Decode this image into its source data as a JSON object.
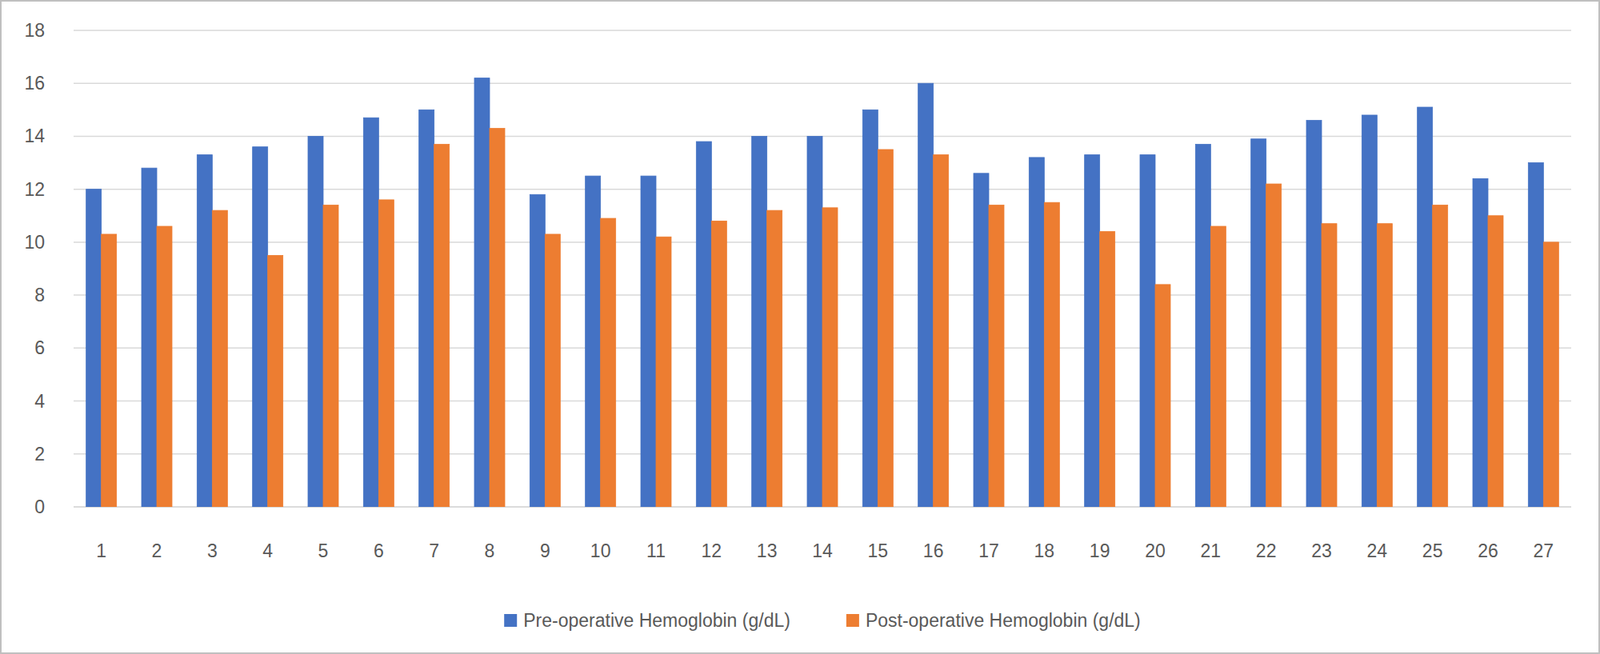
{
  "chart_data": {
    "type": "bar",
    "categories": [
      "1",
      "2",
      "3",
      "4",
      "5",
      "6",
      "7",
      "8",
      "9",
      "10",
      "11",
      "12",
      "13",
      "14",
      "15",
      "16",
      "17",
      "18",
      "19",
      "20",
      "21",
      "22",
      "23",
      "24",
      "25",
      "26",
      "27"
    ],
    "series": [
      {
        "name": "Pre-operative Hemoglobin (g/dL)",
        "color": "#4472c4",
        "values": [
          12.0,
          12.8,
          13.3,
          13.6,
          14.0,
          14.7,
          15.0,
          16.2,
          11.8,
          12.5,
          12.5,
          13.8,
          14.0,
          14.0,
          15.0,
          16.0,
          12.6,
          13.2,
          13.3,
          13.3,
          13.7,
          13.9,
          14.6,
          14.8,
          15.1,
          12.4,
          13.0
        ]
      },
      {
        "name": "Post-operative Hemoglobin (g/dL)",
        "color": "#ed7d31",
        "values": [
          10.3,
          10.6,
          11.2,
          9.5,
          11.4,
          11.6,
          13.7,
          14.3,
          10.3,
          10.9,
          10.2,
          10.8,
          11.2,
          11.3,
          13.5,
          13.3,
          11.4,
          11.5,
          10.4,
          8.4,
          10.6,
          12.2,
          10.7,
          10.7,
          11.4,
          11.0,
          10.0
        ]
      }
    ],
    "ylim": [
      0,
      18
    ],
    "yticks": [
      0,
      2,
      4,
      6,
      8,
      10,
      12,
      14,
      16,
      18
    ],
    "grid": true,
    "legend": "bottom"
  }
}
